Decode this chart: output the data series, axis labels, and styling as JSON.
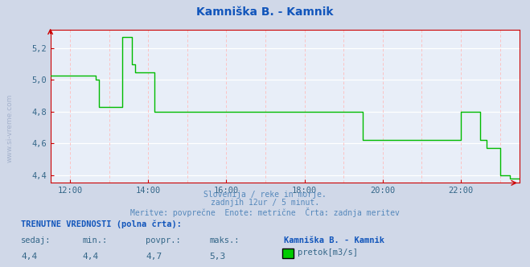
{
  "title": "Kamniška B. - Kamnik",
  "title_color": "#1155bb",
  "bg_color": "#d0d8e8",
  "plot_bg_color": "#e8eef8",
  "grid_color_white": "#ffffff",
  "grid_color_pink": "#ffbbbb",
  "line_color": "#00bb00",
  "axis_color": "#cc0000",
  "tick_color": "#336688",
  "subtitle_color": "#5588bb",
  "footer_color": "#1155bb",
  "stat_color": "#336688",
  "legend_color": "#00cc00",
  "subtitle_lines": [
    "Slovenija / reke in morje.",
    "zadnjih 12ur / 5 minut.",
    "Meritve: povprečne  Enote: metrične  Črta: zadnja meritev"
  ],
  "footer_label": "TRENUTNE VREDNOSTI (polna črta):",
  "stat_labels": [
    "sedaj:",
    "min.:",
    "povpr.:",
    "maks.:"
  ],
  "stat_values": [
    "4,4",
    "4,4",
    "4,7",
    "5,3"
  ],
  "station_label": "Kamniška B. - Kamnik",
  "legend_label": "pretok[m3/s]",
  "ylim": [
    4.35,
    5.32
  ],
  "yticks": [
    4.4,
    4.6,
    4.8,
    5.0,
    5.2
  ],
  "ytick_labels": [
    "4,4",
    "4,6",
    "4,8",
    "5,0",
    "5,2"
  ],
  "xlim": [
    11.5,
    23.5
  ],
  "xticks": [
    12,
    14,
    16,
    18,
    20,
    22
  ],
  "xtick_labels": [
    "12:00",
    "14:00",
    "16:00",
    "18:00",
    "20:00",
    "22:00"
  ],
  "data_x": [
    11.5,
    11.83,
    12.0,
    12.17,
    12.5,
    12.67,
    12.75,
    13.0,
    13.17,
    13.33,
    13.5,
    13.58,
    13.67,
    13.83,
    14.0,
    14.17,
    14.5,
    15.0,
    15.5,
    15.75,
    16.0,
    16.25,
    16.5,
    17.0,
    17.5,
    18.0,
    18.5,
    19.0,
    19.5,
    20.0,
    20.5,
    21.0,
    21.5,
    21.75,
    22.0,
    22.17,
    22.33,
    22.5,
    22.67,
    22.83,
    23.0,
    23.25,
    23.5
  ],
  "data_y": [
    5.03,
    5.03,
    5.03,
    5.03,
    5.03,
    5.0,
    4.83,
    4.83,
    4.83,
    5.27,
    5.27,
    5.1,
    5.05,
    5.05,
    5.05,
    4.8,
    4.8,
    4.8,
    4.8,
    4.8,
    4.8,
    4.8,
    4.8,
    4.8,
    4.8,
    4.8,
    4.8,
    4.8,
    4.62,
    4.62,
    4.62,
    4.62,
    4.62,
    4.62,
    4.8,
    4.8,
    4.8,
    4.62,
    4.57,
    4.57,
    4.4,
    4.38,
    4.38
  ]
}
